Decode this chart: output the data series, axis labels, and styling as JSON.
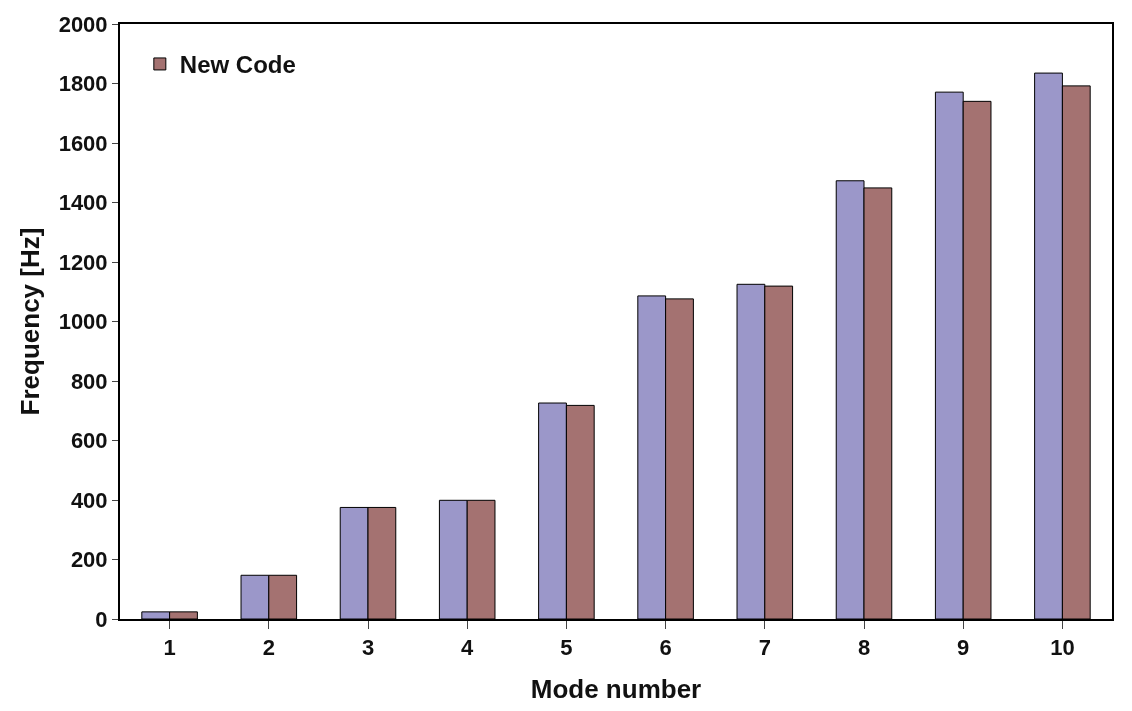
{
  "chart_data": {
    "type": "bar",
    "xlabel": "Mode number",
    "ylabel": "Frequency [Hz]",
    "categories": [
      "1",
      "2",
      "3",
      "4",
      "5",
      "6",
      "7",
      "8",
      "9",
      "10"
    ],
    "series": [
      {
        "color": "#9b97c9",
        "values": [
          24,
          147,
          375,
          399,
          726,
          1086,
          1125,
          1473,
          1771,
          1835
        ]
      },
      {
        "name": "New Code",
        "color": "#a47271",
        "values": [
          24,
          147,
          375,
          399,
          718,
          1076,
          1119,
          1449,
          1740,
          1792
        ]
      }
    ],
    "ylim": [
      0,
      2000
    ],
    "yticks": [
      0,
      200,
      400,
      600,
      800,
      1000,
      1200,
      1400,
      1600,
      1800,
      2000
    ],
    "legend": "top left"
  }
}
